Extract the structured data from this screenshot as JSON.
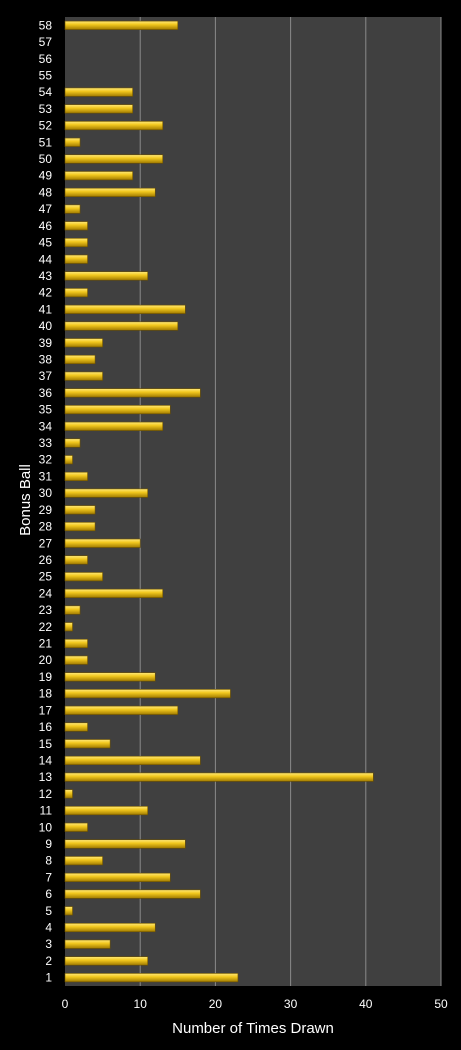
{
  "chart_data": {
    "type": "bar",
    "orientation": "horizontal",
    "xlabel": "Number of Times Drawn",
    "ylabel": "Bonus Ball",
    "xlim": [
      0,
      50
    ],
    "xticks": [
      "0",
      "10",
      "20",
      "30",
      "40",
      "50"
    ],
    "grid": "vertical",
    "colors": {
      "background": "#000000",
      "plot_background": "#404040",
      "bar": "#f2c81e",
      "bar_highlight": "#ffe97a",
      "bar_shadow": "#a07a00",
      "grid": "#8a8a8a",
      "text": "#ffffff"
    },
    "categories": [
      "1",
      "2",
      "3",
      "4",
      "5",
      "6",
      "7",
      "8",
      "9",
      "10",
      "11",
      "12",
      "13",
      "14",
      "15",
      "16",
      "17",
      "18",
      "19",
      "20",
      "21",
      "22",
      "23",
      "24",
      "25",
      "26",
      "27",
      "28",
      "29",
      "30",
      "31",
      "32",
      "33",
      "34",
      "35",
      "36",
      "37",
      "38",
      "39",
      "40",
      "41",
      "42",
      "43",
      "44",
      "45",
      "46",
      "47",
      "48",
      "49",
      "50",
      "51",
      "52",
      "53",
      "54",
      "55",
      "56",
      "57",
      "58"
    ],
    "values": [
      23,
      11,
      6,
      12,
      1,
      18,
      14,
      5,
      16,
      3,
      11,
      1,
      41,
      18,
      6,
      3,
      15,
      22,
      12,
      3,
      3,
      1,
      2,
      13,
      5,
      3,
      10,
      4,
      4,
      11,
      3,
      1,
      2,
      13,
      14,
      18,
      5,
      4,
      5,
      15,
      16,
      3,
      11,
      3,
      3,
      3,
      2,
      12,
      9,
      13,
      2,
      13,
      9,
      9,
      0,
      0,
      0,
      15
    ]
  }
}
